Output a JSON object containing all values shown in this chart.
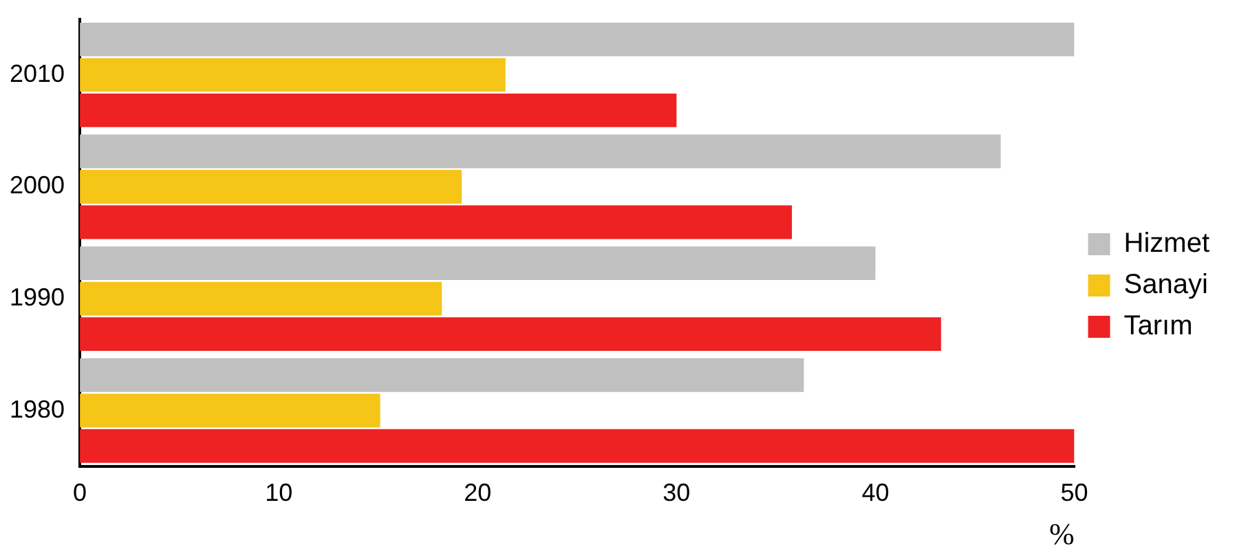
{
  "chart_data": {
    "type": "bar",
    "orientation": "horizontal",
    "categories": [
      "2010",
      "2000",
      "1990",
      "1980"
    ],
    "series": [
      {
        "name": "Hizmet",
        "color": "#c0c0c0",
        "values": [
          50,
          46.3,
          40,
          36.4
        ]
      },
      {
        "name": "Sanayi",
        "color": "#f5c518",
        "values": [
          21.4,
          19.2,
          18.2,
          15.1
        ]
      },
      {
        "name": "Tarım",
        "color": "#ee2222",
        "values": [
          30,
          35.8,
          43.3,
          50
        ]
      }
    ],
    "xlabel": "%",
    "xlim": [
      0,
      50
    ],
    "xticks": [
      0,
      10,
      20,
      30,
      40,
      50
    ],
    "grid": false,
    "legend": "right"
  }
}
